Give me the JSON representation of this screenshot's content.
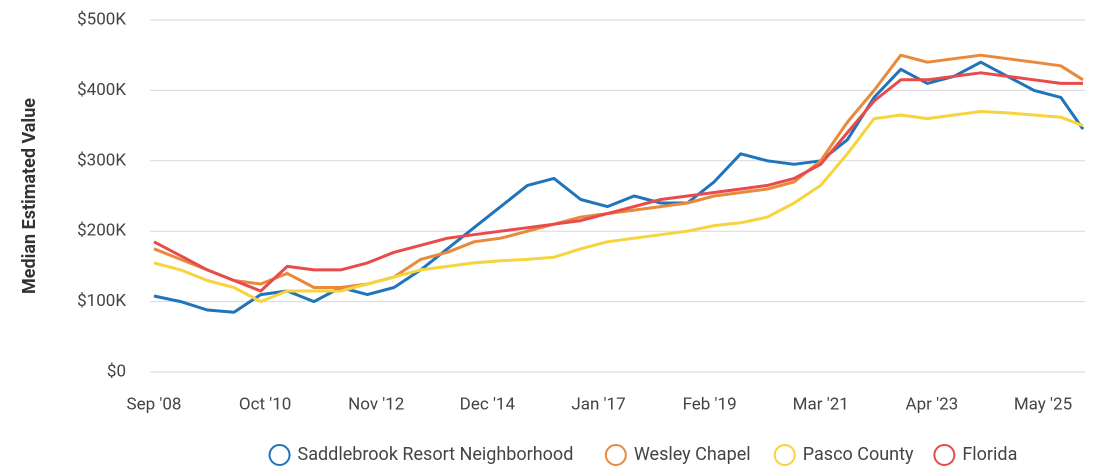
{
  "chart_data": {
    "type": "line",
    "y_label": "Median Estimated Value",
    "x": [
      "2008-09",
      "2009-03",
      "2009-09",
      "2010-03",
      "2010-09",
      "2011-03",
      "2011-09",
      "2012-03",
      "2012-09",
      "2013-03",
      "2013-09",
      "2014-03",
      "2014-09",
      "2015-03",
      "2015-09",
      "2016-03",
      "2016-09",
      "2017-03",
      "2017-09",
      "2018-03",
      "2018-09",
      "2019-03",
      "2019-09",
      "2020-03",
      "2020-09",
      "2021-03",
      "2021-09",
      "2022-03",
      "2022-09",
      "2023-03",
      "2023-09",
      "2024-03",
      "2024-09",
      "2025-03",
      "2025-09",
      "2026-02"
    ],
    "xlim": [
      "2008-09",
      "2026-02"
    ],
    "xticks": [
      {
        "value": "2008-09",
        "label": "Sep '08"
      },
      {
        "value": "2010-10",
        "label": "Oct '10"
      },
      {
        "value": "2012-11",
        "label": "Nov '12"
      },
      {
        "value": "2014-12",
        "label": "Dec '14"
      },
      {
        "value": "2017-01",
        "label": "Jan '17"
      },
      {
        "value": "2019-02",
        "label": "Feb '19"
      },
      {
        "value": "2021-03",
        "label": "Mar '21"
      },
      {
        "value": "2023-04",
        "label": "Apr '23"
      },
      {
        "value": "2025-05",
        "label": "May '25"
      }
    ],
    "ylim": [
      0,
      500000
    ],
    "yticks": [
      {
        "value": 0,
        "label": "$0"
      },
      {
        "value": 100000,
        "label": "$100K"
      },
      {
        "value": 200000,
        "label": "$200K"
      },
      {
        "value": 300000,
        "label": "$300K"
      },
      {
        "value": 400000,
        "label": "$400K"
      },
      {
        "value": 500000,
        "label": "$500K"
      }
    ],
    "grid": true,
    "legend": "bottom",
    "series": [
      {
        "name": "Saddlebrook Resort Neighborhood",
        "color": "#1f74bb",
        "values": [
          108000,
          100000,
          88000,
          85000,
          110000,
          115000,
          100000,
          120000,
          110000,
          120000,
          145000,
          175000,
          205000,
          235000,
          265000,
          275000,
          245000,
          235000,
          250000,
          240000,
          240000,
          270000,
          310000,
          300000,
          295000,
          300000,
          330000,
          390000,
          430000,
          410000,
          420000,
          440000,
          420000,
          400000,
          390000,
          345000
        ]
      },
      {
        "name": "Wesley Chapel",
        "color": "#e8893b",
        "values": [
          175000,
          160000,
          145000,
          130000,
          125000,
          140000,
          120000,
          120000,
          125000,
          135000,
          160000,
          170000,
          185000,
          190000,
          200000,
          210000,
          220000,
          225000,
          230000,
          235000,
          240000,
          250000,
          255000,
          260000,
          270000,
          300000,
          355000,
          400000,
          450000,
          440000,
          445000,
          450000,
          445000,
          440000,
          435000,
          415000
        ]
      },
      {
        "name": "Pasco County",
        "color": "#f7d33d",
        "values": [
          155000,
          145000,
          130000,
          120000,
          100000,
          115000,
          115000,
          115000,
          125000,
          135000,
          145000,
          150000,
          155000,
          158000,
          160000,
          163000,
          175000,
          185000,
          190000,
          195000,
          200000,
          208000,
          212000,
          220000,
          240000,
          265000,
          310000,
          360000,
          365000,
          360000,
          365000,
          370000,
          368000,
          365000,
          362000,
          350000
        ]
      },
      {
        "name": "Florida",
        "color": "#e84b4b",
        "values": [
          185000,
          165000,
          145000,
          130000,
          115000,
          150000,
          145000,
          145000,
          155000,
          170000,
          180000,
          190000,
          195000,
          200000,
          205000,
          210000,
          215000,
          225000,
          235000,
          245000,
          250000,
          255000,
          260000,
          265000,
          275000,
          295000,
          340000,
          385000,
          415000,
          415000,
          420000,
          425000,
          420000,
          415000,
          410000,
          410000
        ]
      }
    ]
  }
}
